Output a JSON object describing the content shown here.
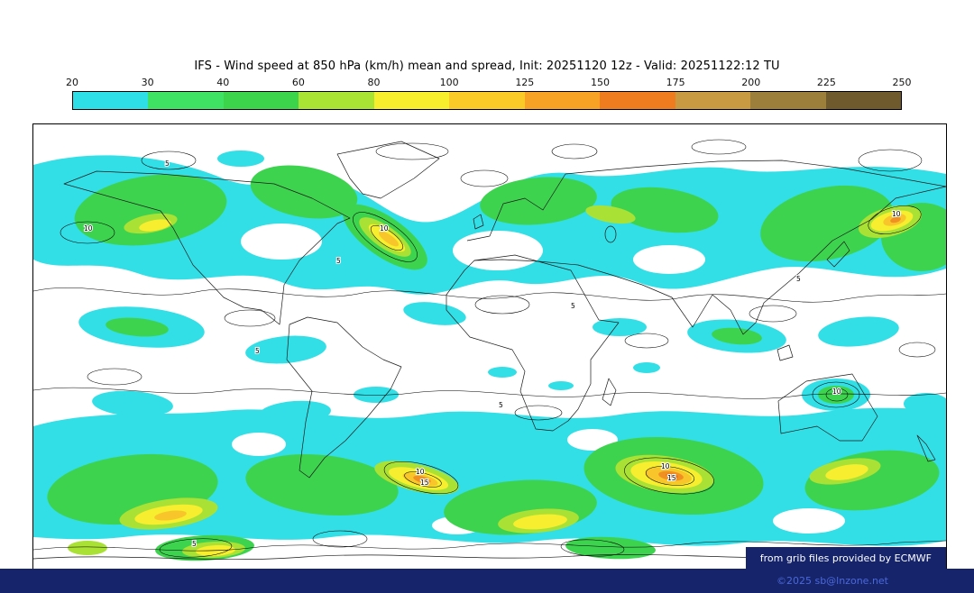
{
  "title": "IFS - Wind speed at 850 hPa (km/h) mean and spread, Init: 20251120 12z - Valid: 20251122:12 TU",
  "colorbar": {
    "ticks": [
      "20",
      "30",
      "40",
      "60",
      "80",
      "100",
      "125",
      "150",
      "175",
      "200",
      "225",
      "250"
    ],
    "colors": [
      "#2fdfe7",
      "#3fe262",
      "#3bd44a",
      "#a9e334",
      "#f7ef2d",
      "#f9ca28",
      "#f7a125",
      "#ef7c1e",
      "#c89b42",
      "#9d7f3c",
      "#6e5a2c"
    ]
  },
  "map": {
    "labels": {
      "five": "5",
      "ten": "10",
      "fifteen": "15"
    }
  },
  "footer": {
    "source_note": "from grib files provided by ECMWF",
    "copyright": "©2025 sb@lnzone.net"
  }
}
